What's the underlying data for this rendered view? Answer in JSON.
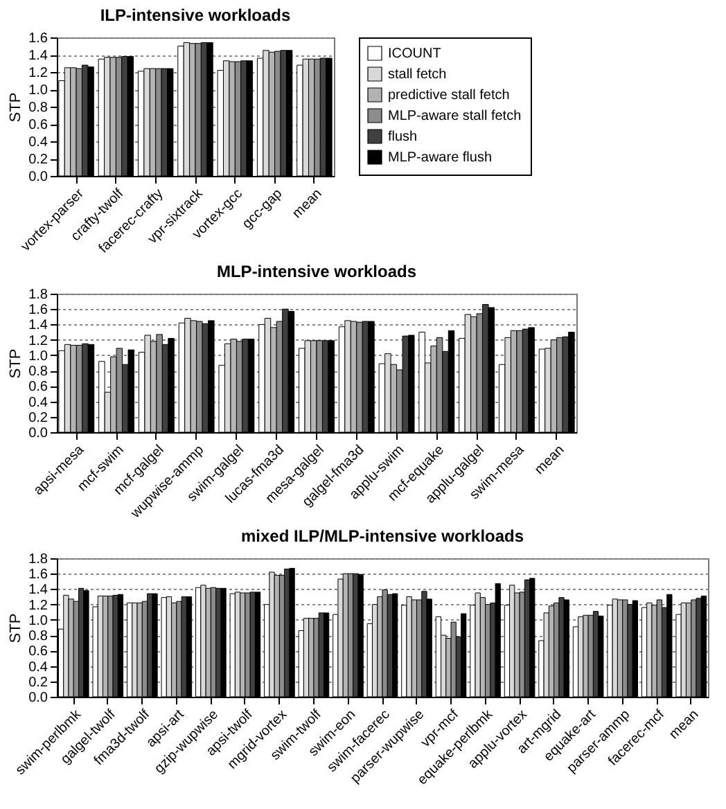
{
  "chart_data": [
    {
      "type": "bar",
      "title": "ILP-intensive workloads",
      "ylabel": "STP",
      "categories": [
        "vortex-parser",
        "crafty-twolf",
        "facerec-crafty",
        "vpr-sixtrack",
        "vortex-gcc",
        "gcc-gap",
        "mean"
      ],
      "ylim": [
        0,
        1.6
      ],
      "yticks": [
        {
          "value": 0,
          "label": "0.0"
        },
        0.2,
        0.4,
        0.6,
        0.8,
        {
          "value": 1,
          "label": "1.0"
        },
        1.2,
        1.4,
        1.6
      ],
      "grid": "y",
      "legend": "right",
      "series": [
        {
          "name": "ICOUNT",
          "color": "#ffffff",
          "values": [
            1.1,
            1.35,
            1.21,
            1.5,
            1.22,
            1.36,
            1.28
          ]
        },
        {
          "name": "stall fetch",
          "color": "#d9d9d9",
          "values": [
            1.25,
            1.37,
            1.24,
            1.54,
            1.33,
            1.45,
            1.35
          ]
        },
        {
          "name": "predictive stall fetch",
          "color": "#b3b3b3",
          "values": [
            1.25,
            1.37,
            1.24,
            1.53,
            1.32,
            1.43,
            1.35
          ]
        },
        {
          "name": "MLP-aware stall fetch",
          "color": "#8c8c8c",
          "values": [
            1.24,
            1.37,
            1.24,
            1.53,
            1.32,
            1.44,
            1.35
          ]
        },
        {
          "name": "flush",
          "color": "#404040",
          "values": [
            1.28,
            1.38,
            1.24,
            1.54,
            1.33,
            1.45,
            1.36
          ]
        },
        {
          "name": "MLP-aware flush",
          "color": "#000000",
          "values": [
            1.26,
            1.38,
            1.24,
            1.54,
            1.33,
            1.45,
            1.36
          ]
        }
      ]
    },
    {
      "type": "bar",
      "title": "MLP-intensive workloads",
      "ylabel": "STP",
      "categories": [
        "apsi-mesa",
        "mcf-swim",
        "mcf-galgel",
        "wupwise-ammp",
        "swim-galgel",
        "lucas-fma3d",
        "mesa-galgel",
        "galgel-fma3d",
        "applu-swim",
        "mcf-equake",
        "applu-galgel",
        "swim-mesa",
        "mean"
      ],
      "ylim": [
        0,
        1.8
      ],
      "yticks": [
        {
          "value": 0,
          "label": "0.0"
        },
        0.2,
        0.4,
        0.6,
        0.8,
        {
          "value": 1,
          "label": "1.0"
        },
        1.2,
        1.4,
        1.6,
        1.8
      ],
      "grid": "y",
      "series": [
        {
          "color": "#ffffff",
          "values": [
            1.06,
            0.92,
            1.04,
            1.42,
            0.87,
            1.4,
            1.09,
            1.37,
            0.89,
            1.3,
            1.22,
            0.88,
            1.08
          ]
        },
        {
          "color": "#d9d9d9",
          "values": [
            1.14,
            0.52,
            1.26,
            1.48,
            1.15,
            1.48,
            1.19,
            1.45,
            1.02,
            0.9,
            1.53,
            1.23,
            1.09
          ]
        },
        {
          "color": "#b3b3b3",
          "values": [
            1.13,
            0.98,
            1.18,
            1.45,
            1.21,
            1.36,
            1.19,
            1.44,
            0.88,
            1.12,
            1.5,
            1.32,
            1.2
          ]
        },
        {
          "color": "#8c8c8c",
          "values": [
            1.13,
            1.09,
            1.27,
            1.44,
            1.18,
            1.44,
            1.19,
            1.43,
            0.81,
            1.23,
            1.54,
            1.32,
            1.23
          ]
        },
        {
          "color": "#404040",
          "values": [
            1.15,
            0.88,
            1.14,
            1.41,
            1.21,
            1.6,
            1.19,
            1.44,
            1.25,
            1.05,
            1.66,
            1.34,
            1.24
          ]
        },
        {
          "color": "#000000",
          "values": [
            1.14,
            1.07,
            1.22,
            1.45,
            1.21,
            1.57,
            1.19,
            1.44,
            1.26,
            1.32,
            1.62,
            1.36,
            1.3
          ]
        }
      ]
    },
    {
      "type": "bar",
      "title": "mixed ILP/MLP-intensive workloads",
      "ylabel": "STP",
      "categories": [
        "swim-perlbmk",
        "galgel-twolf",
        "fma3d-twolf",
        "apsi-art",
        "gzip-wupwise",
        "apsi-twolf",
        "mgrid-vortex",
        "swim-twolf",
        "swim-eon",
        "swim-facerec",
        "parser-wupwise",
        "vpr-mcf",
        "equake-perlbmk",
        "applu-vortex",
        "art-mgrid",
        "equake-art",
        "parser-ammp",
        "facerec-mcf",
        "mean"
      ],
      "ylim": [
        0,
        1.8
      ],
      "yticks": [
        {
          "value": 0,
          "label": "0.0"
        },
        0.2,
        0.4,
        0.6,
        0.8,
        {
          "value": 1,
          "label": "1.0"
        },
        1.2,
        1.4,
        1.6,
        1.8
      ],
      "grid": "y",
      "series": [
        {
          "color": "#ffffff",
          "values": [
            0.88,
            1.17,
            1.22,
            1.29,
            1.42,
            1.34,
            1.2,
            0.86,
            1.07,
            0.95,
            1.19,
            1.04,
            1.19,
            1.19,
            0.73,
            0.91,
            1.19,
            1.16,
            1.07
          ]
        },
        {
          "color": "#d9d9d9",
          "values": [
            1.32,
            1.31,
            1.22,
            1.3,
            1.45,
            1.36,
            1.62,
            1.02,
            1.53,
            1.2,
            1.3,
            0.8,
            1.35,
            1.45,
            1.09,
            1.04,
            1.27,
            1.22,
            1.22
          ]
        },
        {
          "color": "#b3b3b3",
          "values": [
            1.27,
            1.31,
            1.22,
            1.22,
            1.41,
            1.35,
            1.58,
            1.02,
            1.6,
            1.3,
            1.26,
            0.76,
            1.29,
            1.35,
            1.18,
            1.06,
            1.26,
            1.19,
            1.22
          ]
        },
        {
          "color": "#8c8c8c",
          "values": [
            1.24,
            1.31,
            1.24,
            1.24,
            1.42,
            1.35,
            1.58,
            1.02,
            1.6,
            1.39,
            1.26,
            0.97,
            1.2,
            1.36,
            1.22,
            1.06,
            1.26,
            1.26,
            1.26
          ]
        },
        {
          "color": "#404040",
          "values": [
            1.41,
            1.32,
            1.34,
            1.3,
            1.41,
            1.36,
            1.66,
            1.09,
            1.6,
            1.33,
            1.37,
            0.78,
            1.22,
            1.52,
            1.29,
            1.11,
            1.2,
            1.16,
            1.28
          ]
        },
        {
          "color": "#000000",
          "values": [
            1.38,
            1.33,
            1.34,
            1.3,
            1.41,
            1.36,
            1.67,
            1.09,
            1.59,
            1.34,
            1.27,
            1.08,
            1.47,
            1.54,
            1.26,
            1.05,
            1.25,
            1.33,
            1.31
          ]
        }
      ]
    }
  ]
}
